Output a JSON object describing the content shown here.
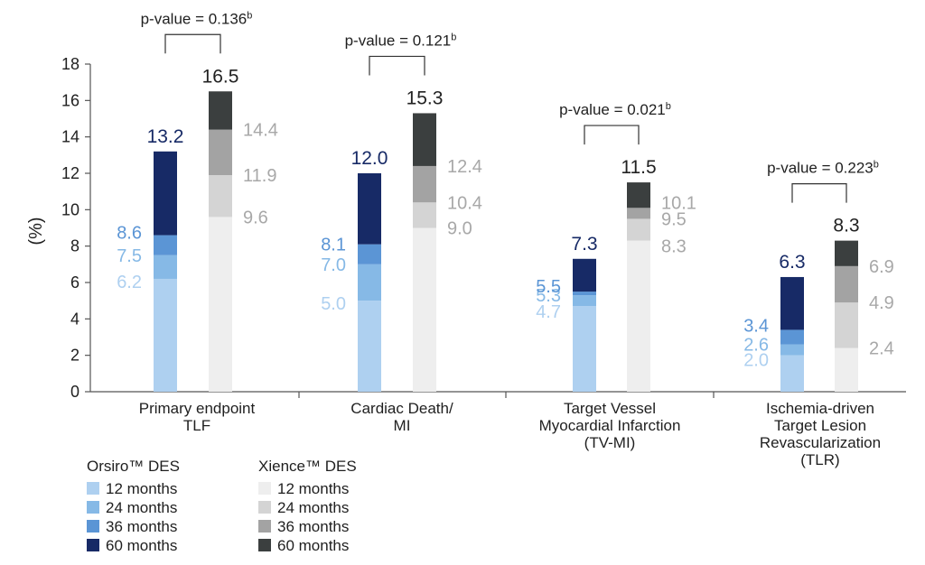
{
  "chart_data": {
    "type": "bar",
    "stacked": true,
    "ylabel": "(%)",
    "ylim": [
      0,
      18
    ],
    "yticks": [
      0,
      2,
      4,
      6,
      8,
      10,
      12,
      14,
      16,
      18
    ],
    "grid": false,
    "legend_placement": "bottom-left",
    "categories": [
      [
        "Primary endpoint",
        "TLF"
      ],
      [
        "Cardiac Death/",
        "MI"
      ],
      [
        "Target Vessel",
        "Myocardial Infarction",
        "(TV-MI)"
      ],
      [
        "Ischemia-driven",
        "Target Lesion",
        "Revascularization",
        "(TLR)"
      ]
    ],
    "series": [
      {
        "name": "Orsiro™ DES",
        "months": [
          "12 months",
          "24 months",
          "36 months",
          "60 months"
        ],
        "cumulative_values": [
          [
            6.2,
            7.5,
            8.6,
            13.2
          ],
          [
            5.0,
            7.0,
            8.1,
            12.0
          ],
          [
            4.7,
            5.3,
            5.5,
            7.3
          ],
          [
            2.0,
            2.6,
            3.4,
            6.3
          ]
        ],
        "label_text": [
          [
            "6.2",
            "7.5",
            "8.6"
          ],
          [
            "5.0",
            "7.0",
            "8.1"
          ],
          [
            "4.7",
            "5.3",
            "5.5"
          ],
          [
            "2.0",
            "2.6",
            "3.4"
          ]
        ],
        "total_text": [
          "13.2",
          "12.0",
          "7.3",
          "6.3"
        ],
        "colors": [
          "#aed0f0",
          "#86b9e6",
          "#5b95d5",
          "#172a66"
        ],
        "label_colors": [
          "#aed0f0",
          "#86b9e6",
          "#5b95d5",
          "#172a66"
        ]
      },
      {
        "name": "Xience™ DES",
        "months": [
          "12 months",
          "24 months",
          "36 months",
          "60 months"
        ],
        "cumulative_values": [
          [
            9.6,
            11.9,
            14.4,
            16.5
          ],
          [
            9.0,
            10.4,
            12.4,
            15.3
          ],
          [
            8.3,
            9.5,
            10.1,
            11.5
          ],
          [
            2.4,
            4.9,
            6.9,
            8.3
          ]
        ],
        "label_text": [
          [
            "9.6",
            "11.9",
            "14.4"
          ],
          [
            "9.0",
            "10.4",
            "12.4"
          ],
          [
            "8.3",
            "9.5",
            "10.1"
          ],
          [
            "2.4",
            "4.9",
            "6.9"
          ]
        ],
        "total_text": [
          "16.5",
          "15.3",
          "11.5",
          "8.3"
        ],
        "colors": [
          "#eeeeee",
          "#d4d4d4",
          "#a3a3a3",
          "#3b3f3f"
        ],
        "label_colors": [
          "#a8a8a8",
          "#a8a8a8",
          "#a8a8a8",
          "#222222"
        ]
      }
    ],
    "annotations": [
      {
        "text": "p-value = 0.136",
        "sup": "b",
        "category": 0
      },
      {
        "text": "p-value = 0.121",
        "sup": "b",
        "category": 1
      },
      {
        "text": "p-value = 0.021",
        "sup": "b",
        "category": 2
      },
      {
        "text": "p-value = 0.223",
        "sup": "b",
        "category": 3
      }
    ]
  }
}
